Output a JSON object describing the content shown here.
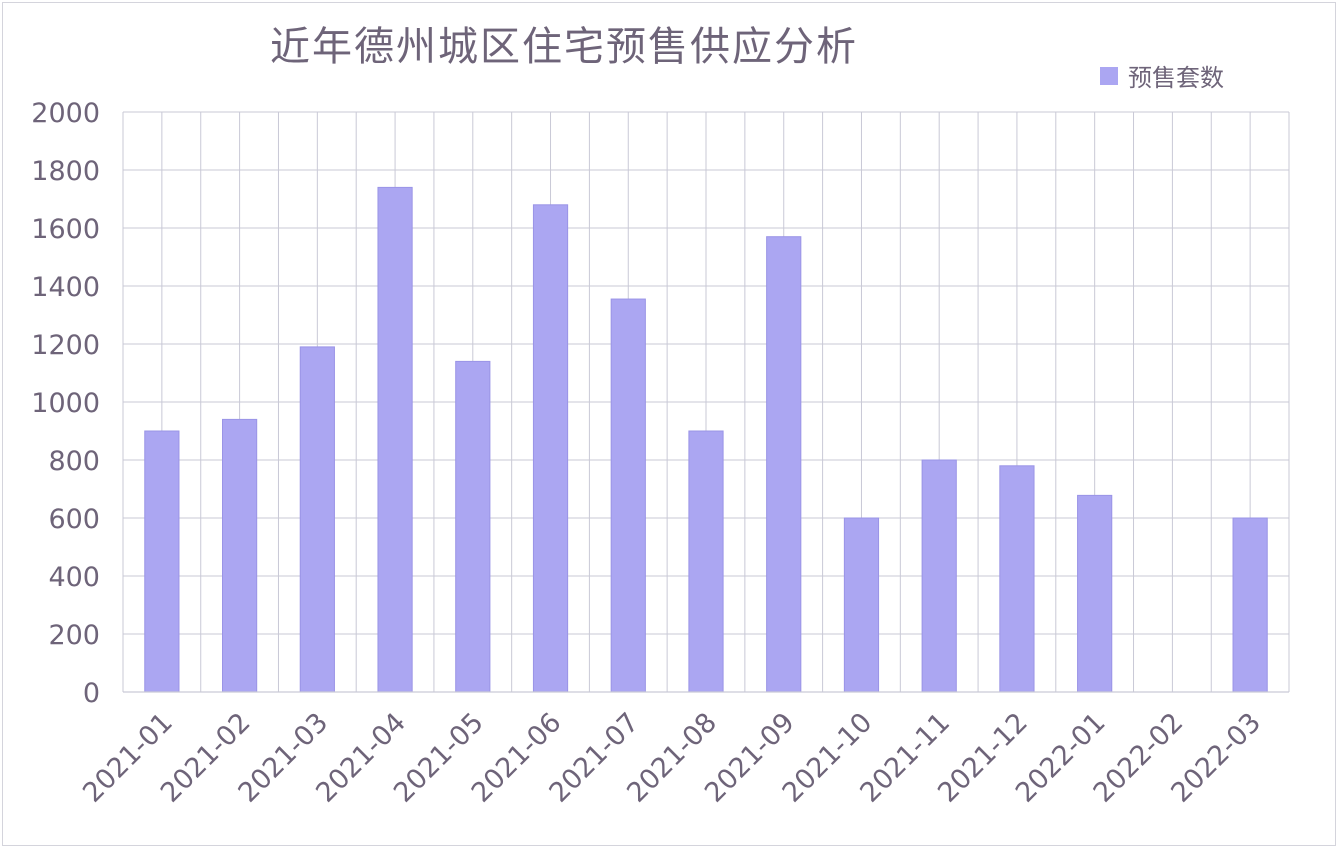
{
  "chart_data": {
    "type": "bar",
    "title": "近年德州城区住宅预售供应分析",
    "categories": [
      "2021-01",
      "2021-02",
      "2021-03",
      "2021-04",
      "2021-05",
      "2021-06",
      "2021-07",
      "2021-08",
      "2021-09",
      "2021-10",
      "2021-11",
      "2021-12",
      "2022-01",
      "2022-02",
      "2022-03"
    ],
    "series": [
      {
        "name": "预售套数",
        "values": [
          900,
          940,
          1190,
          1740,
          1140,
          1680,
          1355,
          900,
          1570,
          600,
          800,
          780,
          678,
          0,
          600
        ]
      }
    ],
    "ylim": [
      0,
      2000
    ],
    "yticks": [
      0,
      200,
      400,
      600,
      800,
      1000,
      1200,
      1400,
      1600,
      1800,
      2000
    ],
    "xlabel": "",
    "ylabel": "",
    "grid": true,
    "legend_position": "top-right",
    "colors": {
      "bar_fill": "#aba6f2",
      "bar_stroke": "#9a94e6",
      "grid": "#c9c9d6",
      "axis_text": "#6e6479",
      "title": "#6e6479"
    }
  }
}
